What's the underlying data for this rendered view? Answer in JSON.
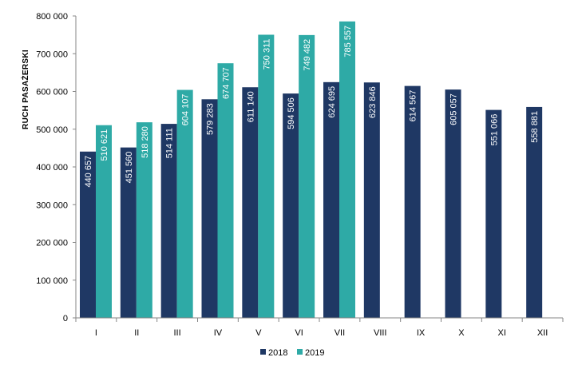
{
  "chart_data": {
    "type": "bar",
    "title": "",
    "xlabel": "",
    "ylabel": "RUCH PASAŻERSKI",
    "ylim": [
      0,
      800000
    ],
    "y_ticks": [
      0,
      100000,
      200000,
      300000,
      400000,
      500000,
      600000,
      700000,
      800000
    ],
    "y_tick_labels": [
      "0",
      "100 000",
      "200 000",
      "300 000",
      "400 000",
      "500 000",
      "600 000",
      "700 000",
      "800 000"
    ],
    "categories": [
      "I",
      "II",
      "III",
      "IV",
      "V",
      "VI",
      "VII",
      "VIII",
      "IX",
      "X",
      "XI",
      "XII"
    ],
    "series": [
      {
        "name": "2018",
        "color": "#1f3864",
        "values": [
          440657,
          451560,
          514111,
          579283,
          611140,
          594506,
          624695,
          623846,
          614567,
          605057,
          551066,
          558881
        ],
        "labels": [
          "440 657",
          "451 560",
          "514 111",
          "579 283",
          "611 140",
          "594 506",
          "624 695",
          "623 846",
          "614 567",
          "605 057",
          "551 066",
          "558 881"
        ]
      },
      {
        "name": "2019",
        "color": "#2eaaa6",
        "values": [
          510621,
          518280,
          604107,
          674707,
          750311,
          749482,
          785557,
          null,
          null,
          null,
          null,
          null
        ],
        "labels": [
          "510 621",
          "518 280",
          "604 107",
          "674 707",
          "750 311",
          "749 482",
          "785 557",
          null,
          null,
          null,
          null,
          null
        ]
      }
    ],
    "grid": false,
    "legend": "bottom-center"
  }
}
